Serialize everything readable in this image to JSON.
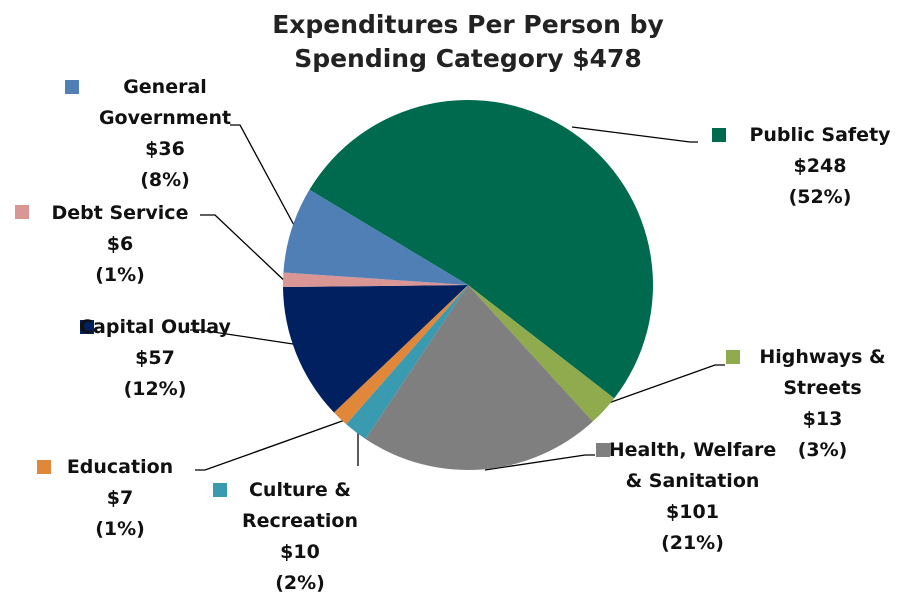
{
  "chart_data": {
    "type": "pie",
    "title": "Expenditures Per Person by Spending Category $478",
    "categories": [
      "Public Safety",
      "Highways & Streets",
      "Health, Welfare & Sanitation",
      "Culture & Recreation",
      "Education",
      "Capital Outlay",
      "Debt Service",
      "General Government"
    ],
    "values": [
      248,
      13,
      101,
      10,
      7,
      57,
      6,
      36
    ],
    "value_labels": [
      "$248",
      "$13",
      "$101",
      "$10",
      "$7",
      "$57",
      "$6",
      "$36"
    ],
    "percent_labels": [
      "(52%)",
      "(3%)",
      "(21%)",
      "(2%)",
      "(1%)",
      "(12%)",
      "(1%)",
      "(8%)"
    ],
    "colors": [
      "#006a4e",
      "#8fab4e",
      "#7f7f7f",
      "#3a9ab0",
      "#e0873a",
      "#002060",
      "#d99694",
      "#4f7fb5"
    ]
  }
}
